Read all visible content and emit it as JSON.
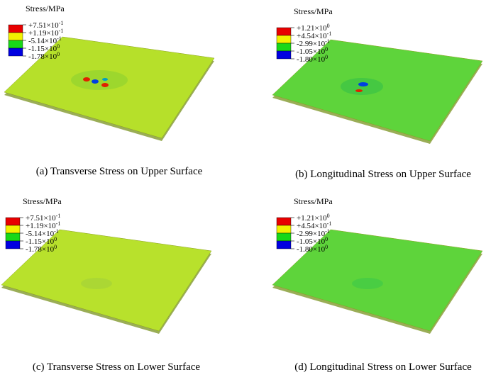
{
  "panels": [
    {
      "legend_title": "Stress/MPa",
      "legend_labels": [
        {
          "mantissa": "+7.51×10",
          "exponent": "-1"
        },
        {
          "mantissa": "+1.19×10",
          "exponent": "-1"
        },
        {
          "mantissa": "-5.14×10",
          "exponent": "-1"
        },
        {
          "mantissa": "-1.15×10",
          "exponent": "0"
        },
        {
          "mantissa": "-1.78×10",
          "exponent": "0"
        }
      ],
      "caption": "(a) Transverse Stress on Upper Surface"
    },
    {
      "legend_title": "Stress/MPa",
      "legend_labels": [
        {
          "mantissa": "+1.21×10",
          "exponent": "0"
        },
        {
          "mantissa": "+4.54×10",
          "exponent": "-1"
        },
        {
          "mantissa": "-2.99×10",
          "exponent": "-1"
        },
        {
          "mantissa": "-1.05×10",
          "exponent": "0"
        },
        {
          "mantissa": "-1.80×10",
          "exponent": "0"
        }
      ],
      "caption": "(b) Longitudinal Stress on Upper Surface"
    },
    {
      "legend_title": "Stress/MPa",
      "legend_labels": [
        {
          "mantissa": "+7.51×10",
          "exponent": "-1"
        },
        {
          "mantissa": "+1.19×10",
          "exponent": "-1"
        },
        {
          "mantissa": "-5.14×10",
          "exponent": "-1"
        },
        {
          "mantissa": "-1.15×10",
          "exponent": "0"
        },
        {
          "mantissa": "-1.78×10",
          "exponent": "0"
        }
      ],
      "caption": "(c) Transverse Stress on Lower Surface"
    },
    {
      "legend_title": "Stress/MPa",
      "legend_labels": [
        {
          "mantissa": "+1.21×10",
          "exponent": "0"
        },
        {
          "mantissa": "+4.54×10",
          "exponent": "-1"
        },
        {
          "mantissa": "-2.99×10",
          "exponent": "-1"
        },
        {
          "mantissa": "-1.05×10",
          "exponent": "0"
        },
        {
          "mantissa": "-1.80×10",
          "exponent": "0"
        }
      ],
      "caption": "(d) Longitudinal Stress on Lower Surface"
    }
  ]
}
